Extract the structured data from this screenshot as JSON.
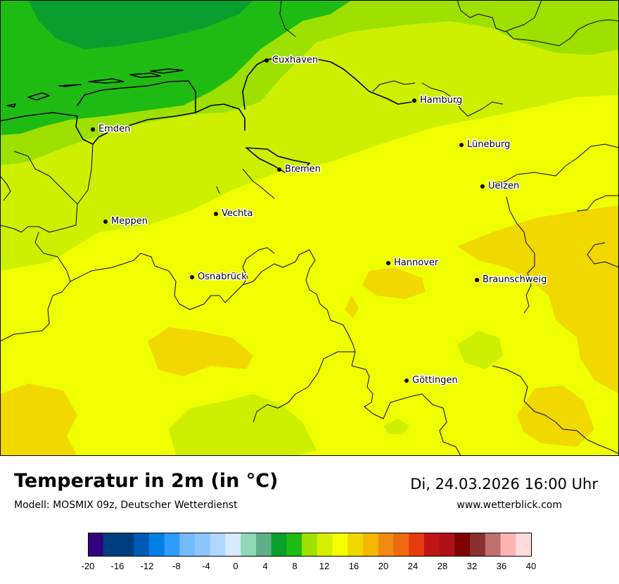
{
  "map": {
    "title": "Temperatur in 2m (in °C)",
    "subtitle": "Modell: MOSMIX 09z, Deutscher Wetterdienst",
    "valid_time": "Di, 24.03.2026 16:00 Uhr",
    "website": "www.wetterblick.com",
    "cities": [
      {
        "name": "Cuxhaven"
      },
      {
        "name": "Hamburg"
      },
      {
        "name": "Emden"
      },
      {
        "name": "Lüneburg"
      },
      {
        "name": "Bremen"
      },
      {
        "name": "Uelzen"
      },
      {
        "name": "Vechta"
      },
      {
        "name": "Meppen"
      },
      {
        "name": "Hannover"
      },
      {
        "name": "Osnabrück"
      },
      {
        "name": "Braunschweig"
      },
      {
        "name": "Göttingen"
      }
    ]
  },
  "legend": {
    "unit": "°C",
    "min": -20,
    "max": 40,
    "step": 2,
    "tick_labels": [
      "-20",
      "-16",
      "-12",
      "-8",
      "-4",
      "0",
      "4",
      "8",
      "12",
      "16",
      "20",
      "24",
      "28",
      "32",
      "36",
      "40"
    ],
    "colors": [
      "#33007f",
      "#003f7f",
      "#003f7f",
      "#0059b2",
      "#0080e6",
      "#2e9bff",
      "#73baff",
      "#8cc6ff",
      "#b0d8ff",
      "#d7eaff",
      "#8fd9b6",
      "#5eb08a",
      "#0a9e2f",
      "#1ebc12",
      "#9ee000",
      "#d4f000",
      "#f5ff00",
      "#f0d800",
      "#f4b800",
      "#f18a10",
      "#ef6a10",
      "#e63a0f",
      "#c01515",
      "#b01018",
      "#7f0000",
      "#8b3030",
      "#c07070",
      "#ffb4b4",
      "#ffdcdc"
    ]
  }
}
